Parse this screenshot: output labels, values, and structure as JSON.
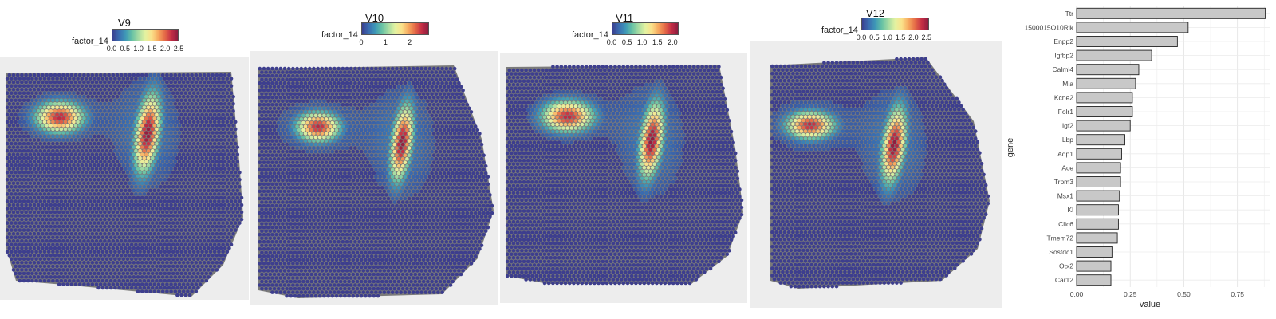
{
  "legend_title": "factor_14",
  "palette": [
    "#3a3f8f",
    "#3a6cb0",
    "#3e98b7",
    "#67c2a4",
    "#a7dca3",
    "#e3f2a1",
    "#fbe18a",
    "#f6a95f",
    "#e56b47",
    "#c42e45",
    "#8c1d3f"
  ],
  "background_spot_color": "#3d3e8e",
  "panels": [
    {
      "title": "V9",
      "ticks": [
        "0.0",
        "0.5",
        "1.0",
        "1.5",
        "2.0",
        "2.5"
      ],
      "max": 2.5
    },
    {
      "title": "V10",
      "ticks": [
        "0",
        "1",
        "2"
      ],
      "max": 2.8
    },
    {
      "title": "V11",
      "ticks": [
        "0.0",
        "0.5",
        "1.0",
        "1.5",
        "2.0"
      ],
      "max": 2.2
    },
    {
      "title": "V12",
      "ticks": [
        "0.0",
        "0.5",
        "1.0",
        "1.5",
        "2.0",
        "2.5"
      ],
      "max": 2.6
    }
  ],
  "chart_data": {
    "type": "bar",
    "orientation": "horizontal",
    "xlabel": "value",
    "ylabel": "gene",
    "xlim": [
      0,
      0.9
    ],
    "xticks": [
      "0.00",
      "0.25",
      "0.50",
      "0.75"
    ],
    "bar_color": "#c8c8c8",
    "categories": [
      "Ttr",
      "1500015O10Rik",
      "Enpp2",
      "Igfbp2",
      "Calml4",
      "Mia",
      "Kcne2",
      "Folr1",
      "Igf2",
      "Lbp",
      "Aqp1",
      "Ace",
      "Trpm3",
      "Msx1",
      "Kl",
      "Clic6",
      "Tmem72",
      "Sostdc1",
      "Otx2",
      "Car12"
    ],
    "values": [
      0.88,
      0.52,
      0.47,
      0.35,
      0.29,
      0.275,
      0.26,
      0.26,
      0.25,
      0.225,
      0.21,
      0.205,
      0.205,
      0.2,
      0.195,
      0.195,
      0.19,
      0.165,
      0.16,
      0.16
    ]
  }
}
